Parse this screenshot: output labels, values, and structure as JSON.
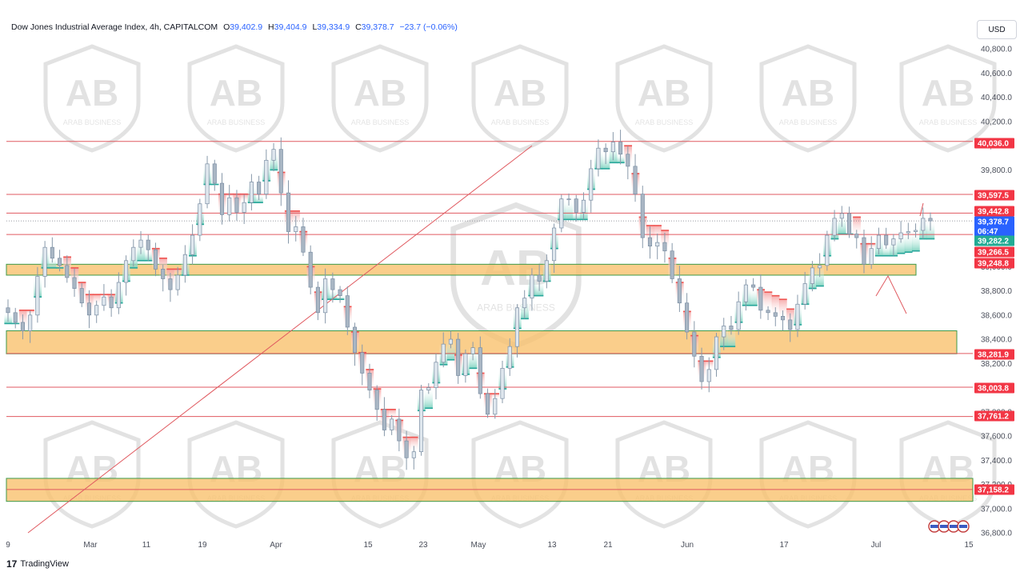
{
  "header": {
    "symbol": "Dow Jones Industrial Average Index, 4h, CAPITALCOM",
    "open_label": "O",
    "open": "39,402.9",
    "high_label": "H",
    "high": "39,404.9",
    "low_label": "L",
    "low": "39,334.9",
    "close_label": "C",
    "close": "39,378.7",
    "change": "−23.7 (−0.06%)"
  },
  "currency_button": "USD",
  "footer": {
    "brand_mark": "17",
    "brand": "TradingView"
  },
  "watermark": {
    "name": "ARAB BUSINESS",
    "initials": "AB"
  },
  "colors": {
    "up_candle": "#26a69a",
    "down_candle": "#ef5350",
    "candle_wick": "#8899aa",
    "level_line": "#e05a60",
    "zone_fill": "#f9c06a",
    "zone_border": "#3c9a4a",
    "price_label_red": "#f23645",
    "price_label_green": "#22ab94",
    "price_label_blue": "#2962ff"
  },
  "chart_data": {
    "type": "candlestick",
    "title": "Dow Jones Industrial Average Index, 4h, CAPITALCOM",
    "timeframe": "4h",
    "x_ticks": [
      "9",
      "Mar",
      "11",
      "19",
      "Apr",
      "15",
      "23",
      "May",
      "13",
      "21",
      "Jun",
      "17",
      "Jul",
      "15"
    ],
    "y_ticks": [
      36800,
      37000,
      37200,
      37400,
      37600,
      37800,
      38000,
      38200,
      38400,
      38600,
      38800,
      39000,
      39200,
      39400,
      39600,
      39800,
      40000,
      40200,
      40400,
      40600,
      40800
    ],
    "ylim": [
      36800,
      40800
    ],
    "grid": false,
    "horizontal_levels": [
      40036.0,
      39597.5,
      39442.8,
      39266.5,
      38281.9,
      38003.8,
      37761.2,
      37158.2
    ],
    "price_labels": [
      {
        "text": "40,036.0",
        "value": 40036.0,
        "color": "red"
      },
      {
        "text": "39,597.5",
        "value": 39597.5,
        "color": "red"
      },
      {
        "text": "39,442.8",
        "value": 39442.8,
        "color": "red"
      },
      {
        "text": "39,378.7",
        "value": 39378.7,
        "color": "blue"
      },
      {
        "text": "06:47",
        "value": 39325,
        "color": "blue"
      },
      {
        "text": "39,282.2",
        "value": 39282.2,
        "color": "green"
      },
      {
        "text": "39,266.5",
        "value": 39266.5,
        "color": "red"
      },
      {
        "text": "39,248.8",
        "value": 39248.8,
        "color": "red"
      },
      {
        "text": "38,281.9",
        "value": 38281.9,
        "color": "red"
      },
      {
        "text": "38,003.8",
        "value": 38003.8,
        "color": "red"
      },
      {
        "text": "37,761.2",
        "value": 37761.2,
        "color": "red"
      },
      {
        "text": "37,158.2",
        "value": 37158.2,
        "color": "red"
      }
    ],
    "zones": [
      {
        "from": 38930,
        "to": 39020,
        "x_end": "early Jul"
      },
      {
        "from": 38280,
        "to": 38470,
        "x_end": "Jul 15"
      },
      {
        "from": 37060,
        "to": 37250,
        "x_end": "Jul 15"
      }
    ],
    "trendline": {
      "from": {
        "x": "Feb 9",
        "y": 36800
      },
      "to": {
        "x": "Apr 29",
        "y": 40000
      }
    },
    "close": 39378.7,
    "series": [
      {
        "closes": [
          38620,
          38540,
          38470,
          38600,
          38920,
          39160,
          39070,
          39010,
          38910,
          38820,
          38700,
          38600,
          38680,
          38750,
          38660,
          38870,
          39050,
          39160,
          39220,
          39140,
          38980,
          38900,
          38810,
          38930,
          39100,
          39260,
          39520,
          39850,
          39690,
          39430,
          39570,
          39450,
          39530,
          39700,
          39600,
          39880,
          39970,
          39610,
          39290,
          39330,
          39120,
          38830,
          38620,
          38900,
          38810,
          38760,
          38500,
          38290,
          38120,
          37980,
          37820,
          37650,
          37740,
          37560,
          37420,
          37470,
          37980,
          38000,
          38210,
          38360,
          38400,
          38100,
          38280,
          38330,
          37950,
          37780,
          37910,
          38160,
          38340,
          38660,
          38740,
          38930,
          38880,
          39050,
          39320,
          39560,
          39560,
          39450,
          39550,
          39810,
          39980,
          39950,
          40030,
          39930,
          39830,
          39600,
          39240,
          39170,
          39200,
          39130,
          38900,
          38700,
          38460,
          38260,
          38050,
          38150,
          38420,
          38510,
          38480,
          38710,
          38850,
          38830,
          38640,
          38620,
          38590,
          38560,
          38480,
          38690,
          38860,
          38990,
          39010,
          39260,
          39400,
          39440,
          39270,
          39240,
          39020,
          39150,
          39260,
          39180,
          39230,
          39280,
          39290,
          39300,
          39400,
          39378.7
        ]
      }
    ]
  }
}
